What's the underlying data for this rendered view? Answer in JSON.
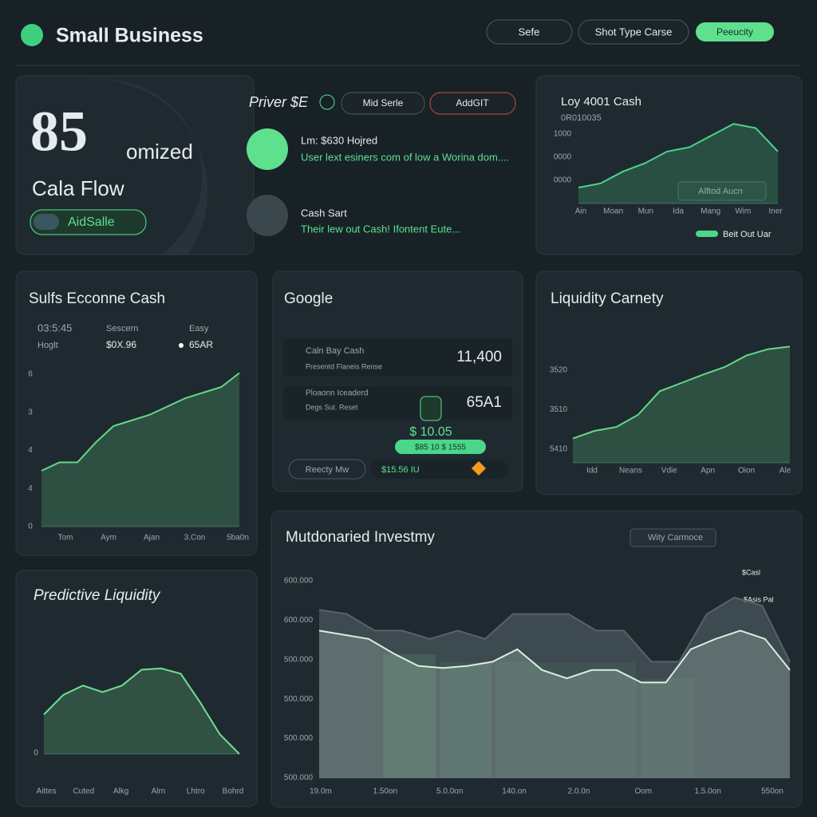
{
  "header": {
    "title": "Small Business",
    "buttons": [
      "Sefe",
      "Shot Type Carse",
      "Peeucity"
    ]
  },
  "hero": {
    "value": "85",
    "suffix": "omized",
    "label": "Cala Flow",
    "button": "AidSalle"
  },
  "privacy": {
    "title": "Priver $E",
    "buttons": [
      "Mid Serle",
      "AddGIT"
    ],
    "items": [
      {
        "title": "Lm: $630 Hojred",
        "text": "User lext esiners com of low a Worina dom...."
      },
      {
        "title": "Cash Sart",
        "text": "Their lew out Cash! Ifontent Eute..."
      }
    ]
  },
  "google": {
    "title": "Google",
    "rows": [
      {
        "label": "Caln Bay Cash",
        "sub": "Presentd Flaneis Rense",
        "value": "11,400"
      },
      {
        "label": "Ploaonn Iceaderd",
        "sub": "Degs Sut. Reset",
        "value": "65A1"
      }
    ],
    "badge": "$ 10.05",
    "badge_sub": "$85 10 $ 1555",
    "button": "Reecty Mw",
    "amount": "$15.56 IU"
  },
  "sulfs_stats": [
    {
      "value": "03:5:45",
      "label": "Hoglt"
    },
    {
      "label": "Sescern",
      "value": "$0X.96"
    },
    {
      "label": "Easy",
      "value": "65AR"
    }
  ],
  "chart_data": [
    {
      "type": "area",
      "title": "Loy 4001 Cash",
      "subtitle": "0R010035",
      "button": "Alftod Aucn",
      "y_labels": [
        "1000",
        "0000",
        "0000"
      ],
      "x_labels": [
        "Ain",
        "Moan",
        "Mun",
        "Ida",
        "Mang",
        "Wim",
        "Iner"
      ],
      "ylim": [
        0,
        10
      ],
      "series": [
        {
          "name": "Beit Out Uar",
          "color": "#4cd68a",
          "values": [
            1.9,
            2.4,
            3.8,
            4.8,
            6.2,
            6.7,
            8.1,
            9.5,
            9.0,
            6.2
          ]
        }
      ]
    },
    {
      "type": "area",
      "title": "Sulfs Ecconne Cash",
      "y_labels": [
        "6",
        "3",
        "4",
        "4",
        "0"
      ],
      "x_labels": [
        "Tom",
        "Aym",
        "Ajan",
        "3.Con",
        "5ba0n"
      ],
      "ylim": [
        0,
        6
      ],
      "series": [
        {
          "color": "#63d98a",
          "values": [
            2.0,
            2.3,
            2.3,
            3.0,
            3.6,
            3.8,
            4.0,
            4.3,
            4.6,
            4.8,
            5.0,
            5.5
          ]
        }
      ]
    },
    {
      "type": "area",
      "title": "Liquidity Carnety",
      "y_labels": [
        "3520",
        "3510",
        "5410"
      ],
      "x_labels": [
        "Idd",
        "Neans",
        "Vdie",
        "Apn",
        "Oion",
        "Ale"
      ],
      "ylim": [
        0,
        10
      ],
      "series": [
        {
          "color": "#63d98a",
          "values": [
            1.9,
            2.5,
            2.8,
            3.75,
            5.6,
            6.25,
            6.9,
            7.5,
            8.4,
            8.9,
            9.1
          ]
        }
      ]
    },
    {
      "type": "area",
      "title": "Predictive Liquidity",
      "y_labels": [
        "0"
      ],
      "x_labels": [
        "Aittes",
        "Cuted",
        "Alkg",
        "Alrn",
        "Lhtro",
        "Bohrd"
      ],
      "ylim": [
        0,
        10
      ],
      "series": [
        {
          "color": "#6fe08f",
          "values": [
            3.0,
            4.5,
            5.2,
            4.7,
            5.2,
            6.4,
            6.5,
            6.1,
            3.9,
            1.5,
            0
          ]
        }
      ]
    },
    {
      "type": "area",
      "title": "Mutdonaried Investmy",
      "button": "Wity Carmoce",
      "annotations": [
        "$Casl",
        "$Asis Pal"
      ],
      "y_labels": [
        "600.000",
        "600.000",
        "500.000",
        "500.000",
        "500.000",
        "500.000"
      ],
      "x_labels": [
        "19.0m",
        "1.50on",
        "5.0.0on",
        "140.on",
        "2.0.0n",
        "Oom",
        "1.5.0on",
        "550on"
      ],
      "ylim": [
        0,
        10
      ],
      "series": [
        {
          "color": "#56646a",
          "values": [
            8.1,
            7.9,
            7.1,
            7.1,
            6.7,
            7.1,
            6.7,
            7.9,
            7.9,
            7.9,
            7.1,
            7.1,
            5.6,
            5.6,
            7.9,
            8.7,
            8.3,
            5.6
          ]
        },
        {
          "color": "#d8efe0",
          "values": [
            7.1,
            6.9,
            6.7,
            6.0,
            5.4,
            5.3,
            5.4,
            5.6,
            6.2,
            5.2,
            4.8,
            5.2,
            5.2,
            4.6,
            4.6,
            6.2,
            6.7,
            7.1,
            6.7,
            5.2
          ]
        }
      ]
    }
  ]
}
